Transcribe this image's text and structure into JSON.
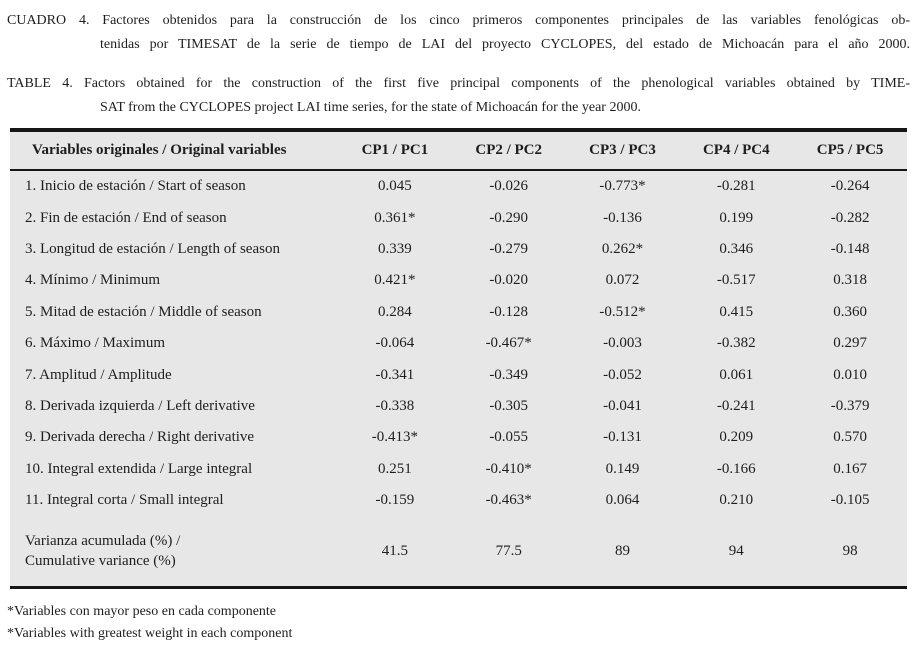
{
  "captions": {
    "spanish": {
      "line1": "CUADRO 4. Factores obtenidos para la construcción de los cinco primeros componentes principales de las variables fenológicas ob-",
      "line2": "tenidas por TIMESAT de la serie de tiempo de LAI del proyecto CYCLOPES, del estado de Michoacán para el año 2000."
    },
    "english": {
      "line1": "TABLE 4. Factors obtained for the construction of the first five principal components of the phenological variables obtained by TIME-",
      "line2": "SAT from the CYCLOPES project LAI time series, for the state of Michoacán for the year 2000."
    }
  },
  "table": {
    "headers": [
      "Variables originales / Original variables",
      "CP1 / PC1",
      "CP2 / PC2",
      "CP3 / PC3",
      "CP4 / PC4",
      "CP5 / PC5"
    ],
    "rows": [
      {
        "label": "1. Inicio de estación / Start of season",
        "values": [
          "0.045",
          "-0.026",
          "-0.773*",
          "-0.281",
          "-0.264"
        ]
      },
      {
        "label": "2. Fin de estación / End of season",
        "values": [
          "0.361*",
          "-0.290",
          "-0.136",
          "0.199",
          "-0.282"
        ]
      },
      {
        "label": "3. Longitud de estación / Length of season",
        "values": [
          "0.339",
          "-0.279",
          "0.262*",
          "0.346",
          "-0.148"
        ]
      },
      {
        "label": "4. Mínimo / Minimum",
        "values": [
          "0.421*",
          "-0.020",
          "0.072",
          "-0.517",
          "0.318"
        ]
      },
      {
        "label": "5. Mitad de estación / Middle of season",
        "values": [
          "0.284",
          "-0.128",
          "-0.512*",
          "0.415",
          "0.360"
        ]
      },
      {
        "label": "6. Máximo / Maximum",
        "values": [
          "-0.064",
          "-0.467*",
          "-0.003",
          "-0.382",
          "0.297"
        ]
      },
      {
        "label": "7. Amplitud / Amplitude",
        "values": [
          "-0.341",
          "-0.349",
          "-0.052",
          "0.061",
          "0.010"
        ]
      },
      {
        "label": "8. Derivada izquierda / Left derivative",
        "values": [
          "-0.338",
          "-0.305",
          "-0.041",
          "-0.241",
          "-0.379"
        ]
      },
      {
        "label": "9. Derivada derecha / Right derivative",
        "values": [
          "-0.413*",
          "-0.055",
          "-0.131",
          "0.209",
          "0.570"
        ]
      },
      {
        "label": "10. Integral extendida / Large integral",
        "values": [
          "0.251",
          "-0.410*",
          "0.149",
          "-0.166",
          "0.167"
        ]
      },
      {
        "label": "11. Integral corta / Small integral",
        "values": [
          "-0.159",
          "-0.463*",
          "0.064",
          "0.210",
          "-0.105"
        ]
      }
    ],
    "variance_row": {
      "label_line1": "Varianza acumulada (%) /",
      "label_line2": "Cumulative variance (%)",
      "values": [
        "41.5",
        "77.5",
        "89",
        "94",
        "98"
      ]
    }
  },
  "footnotes": [
    "*Variables con mayor peso en cada componente",
    "*Variables with greatest weight in each component"
  ],
  "colors": {
    "table_background": "#e7e7e7",
    "border": "#161616",
    "text": "#1e1e1e"
  }
}
